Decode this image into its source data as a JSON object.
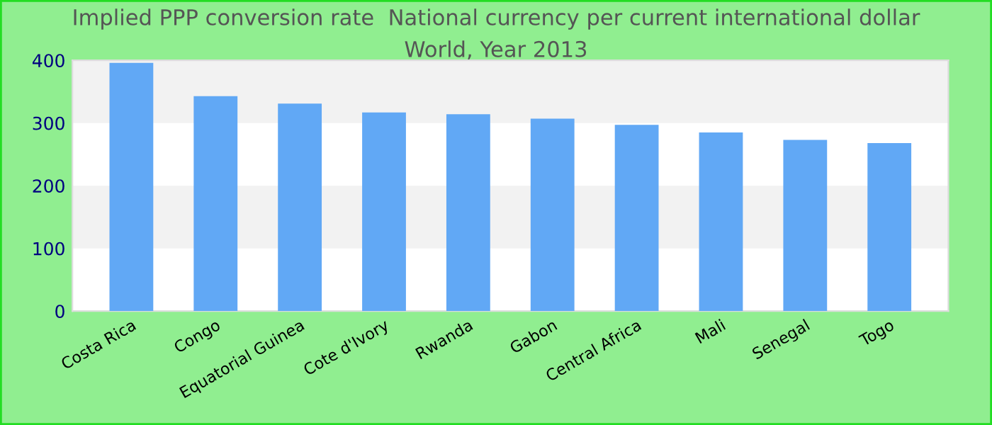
{
  "chart_data": {
    "type": "bar",
    "title": "Implied PPP conversion rate  National currency per current international dollar",
    "subtitle": "World, Year 2013",
    "categories": [
      "Costa Rica",
      "Congo",
      "Equatorial Guinea",
      "Cote d'Ivory",
      "Rwanda",
      "Gabon",
      "Central Africa",
      "Mali",
      "Senegal",
      "Togo"
    ],
    "values": [
      396,
      343,
      331,
      317,
      314,
      307,
      297,
      285,
      273,
      268
    ],
    "color": "#61a8f5",
    "ylim": [
      0,
      400
    ],
    "yticks": [
      0,
      100,
      200,
      300,
      400
    ],
    "bands": [
      {
        "axis": "y",
        "from": 100,
        "to": 200,
        "color": "#f2f2f2"
      },
      {
        "axis": "y",
        "from": 300,
        "to": 400,
        "color": "#f2f2f2"
      }
    ]
  }
}
